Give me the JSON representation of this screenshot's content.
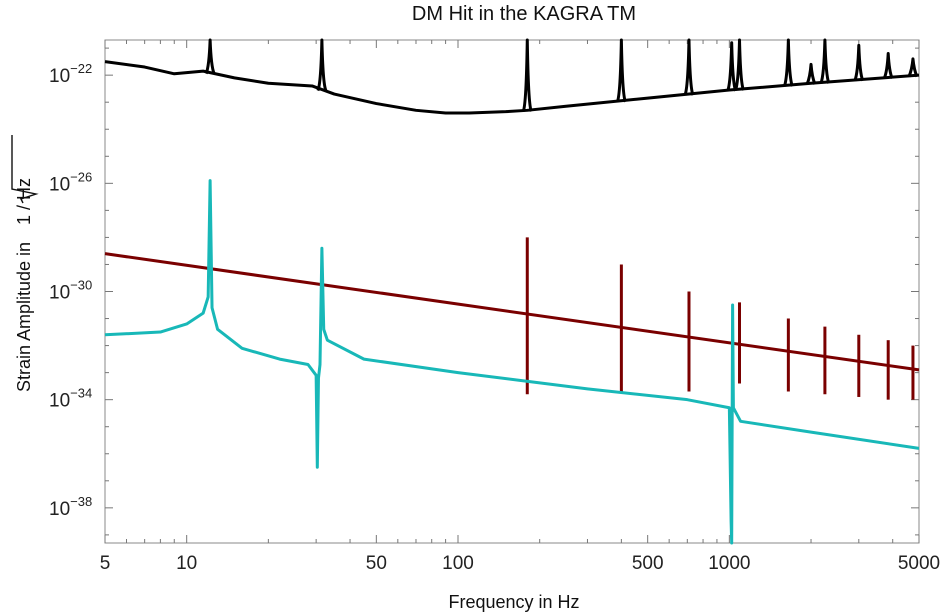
{
  "chart_data": {
    "type": "line",
    "title": "DM Hit in the KAGRA TM",
    "xlabel": "Frequency in Hz",
    "ylabel": {
      "prefix": "Strain Amplitude in ",
      "radicand": "1 / Hz"
    },
    "xscale": "log",
    "yscale": "log",
    "xlim": [
      5,
      5000
    ],
    "ylim_exp": [
      -39.3,
      -20.7
    ],
    "x_ticks": [
      {
        "value": 5,
        "label": "5"
      },
      {
        "value": 10,
        "label": "10"
      },
      {
        "value": 50,
        "label": "50"
      },
      {
        "value": 100,
        "label": "100"
      },
      {
        "value": 500,
        "label": "500"
      },
      {
        "value": 1000,
        "label": "1000"
      },
      {
        "value": 5000,
        "label": "5000"
      }
    ],
    "y_ticks": [
      {
        "exp": -22,
        "base": "10",
        "power": "−22"
      },
      {
        "exp": -26,
        "base": "10",
        "power": "−26"
      },
      {
        "exp": -30,
        "base": "10",
        "power": "−30"
      },
      {
        "exp": -34,
        "base": "10",
        "power": "−34"
      },
      {
        "exp": -38,
        "base": "10",
        "power": "−38"
      }
    ],
    "grid": false,
    "legend": "none",
    "series": [
      {
        "color": "#000000",
        "style": "noise-curve",
        "points": [
          [
            5,
            -21.5
          ],
          [
            7,
            -21.7
          ],
          [
            9,
            -21.95
          ],
          [
            11.5,
            -21.85
          ],
          [
            15,
            -22.1
          ],
          [
            20,
            -22.3
          ],
          [
            29,
            -22.4
          ],
          [
            35,
            -22.7
          ],
          [
            50,
            -23.05
          ],
          [
            70,
            -23.3
          ],
          [
            90,
            -23.4
          ],
          [
            110,
            -23.4
          ],
          [
            150,
            -23.35
          ],
          [
            180,
            -23.3
          ],
          [
            250,
            -23.15
          ],
          [
            500,
            -22.85
          ],
          [
            1000,
            -22.55
          ],
          [
            2000,
            -22.3
          ],
          [
            5000,
            -22.0
          ]
        ],
        "spikes": [
          {
            "x": 12.2,
            "top": -20.0
          },
          {
            "x": 31.5,
            "top": -20.0
          },
          {
            "x": 180,
            "top": -20.0
          },
          {
            "x": 400,
            "top": -20.0
          },
          {
            "x": 710,
            "top": -20.0
          },
          {
            "x": 1020,
            "top": -20.8
          },
          {
            "x": 1090,
            "top": -20.0
          },
          {
            "x": 1650,
            "top": -20.3
          },
          {
            "x": 2000,
            "top": -21.6
          },
          {
            "x": 2250,
            "top": -20.0
          },
          {
            "x": 3000,
            "top": -20.9
          },
          {
            "x": 3850,
            "top": -21.2
          },
          {
            "x": 4750,
            "top": -21.4
          }
        ]
      },
      {
        "color": "#7a0000",
        "style": "power-law",
        "points": [
          [
            5,
            -28.6
          ],
          [
            5000,
            -32.9
          ]
        ],
        "spikes": [
          {
            "x": 180,
            "top": -28.0,
            "bottom": -33.8
          },
          {
            "x": 400,
            "top": -29.0,
            "bottom": -33.7
          },
          {
            "x": 710,
            "top": -30.0,
            "bottom": -33.7
          },
          {
            "x": 1090,
            "top": -30.4,
            "bottom": -33.4
          },
          {
            "x": 1650,
            "top": -31.0,
            "bottom": -33.7
          },
          {
            "x": 2250,
            "top": -31.3,
            "bottom": -33.8
          },
          {
            "x": 3000,
            "top": -31.6,
            "bottom": -33.9
          },
          {
            "x": 3850,
            "top": -31.8,
            "bottom": -34.0
          },
          {
            "x": 4750,
            "top": -32.0,
            "bottom": -34.0
          }
        ]
      },
      {
        "color": "#18b8b8",
        "style": "resonant-response",
        "points": [
          [
            5,
            -31.6
          ],
          [
            8,
            -31.5
          ],
          [
            10,
            -31.2
          ],
          [
            11.5,
            -30.8
          ],
          [
            12.0,
            -30.2
          ],
          [
            12.2,
            -25.9
          ],
          [
            12.4,
            -30.6
          ],
          [
            13,
            -31.4
          ],
          [
            16,
            -32.1
          ],
          [
            22,
            -32.5
          ],
          [
            28,
            -32.7
          ],
          [
            30,
            -33.1
          ],
          [
            30.3,
            -36.5
          ],
          [
            30.6,
            -33.2
          ],
          [
            31.0,
            -32.7
          ],
          [
            31.5,
            -28.4
          ],
          [
            32.0,
            -31.4
          ],
          [
            33,
            -31.8
          ],
          [
            45,
            -32.5
          ],
          [
            100,
            -33.0
          ],
          [
            300,
            -33.6
          ],
          [
            700,
            -34.0
          ],
          [
            1000,
            -34.3
          ],
          [
            1015,
            -38.5
          ],
          [
            1020,
            -39.4
          ],
          [
            1028,
            -30.5
          ],
          [
            1035,
            -34.3
          ],
          [
            1100,
            -34.8
          ],
          [
            2000,
            -35.2
          ],
          [
            5000,
            -35.8
          ]
        ]
      }
    ]
  }
}
